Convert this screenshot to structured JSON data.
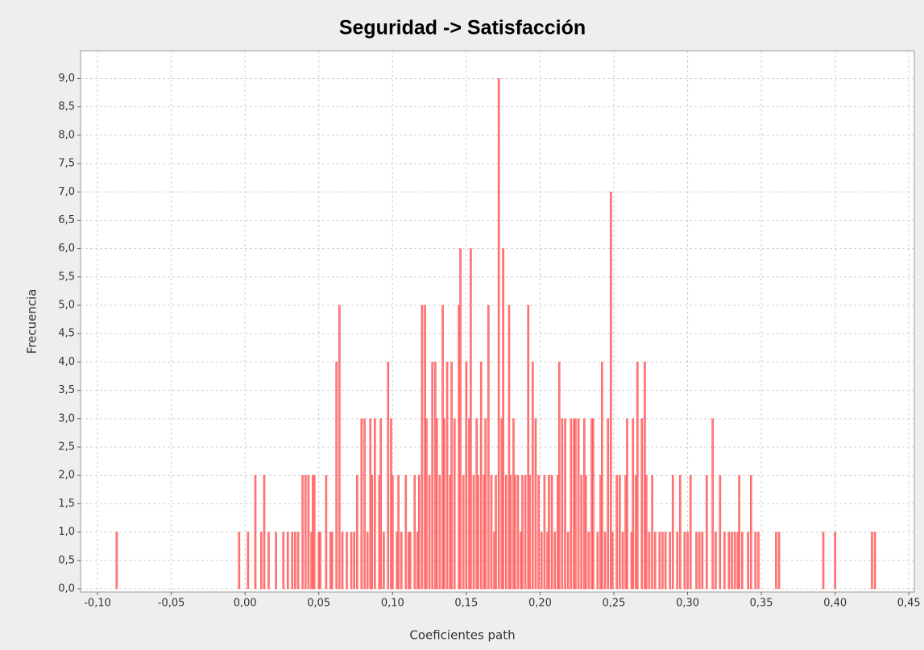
{
  "chart_data": {
    "type": "bar",
    "title": "Seguridad -> Satisfacción",
    "xlabel": "Coeficientes path",
    "ylabel": "Frecuencia",
    "color": "#ff5555",
    "x": [
      -0.087,
      -0.004,
      0.002,
      0.007,
      0.011,
      0.013,
      0.016,
      0.021,
      0.026,
      0.029,
      0.032,
      0.034,
      0.036,
      0.039,
      0.041,
      0.043,
      0.045,
      0.046,
      0.047,
      0.05,
      0.051,
      0.055,
      0.058,
      0.059,
      0.062,
      0.064,
      0.066,
      0.069,
      0.072,
      0.074,
      0.076,
      0.079,
      0.081,
      0.083,
      0.085,
      0.086,
      0.088,
      0.091,
      0.092,
      0.094,
      0.097,
      0.099,
      0.1,
      0.103,
      0.104,
      0.106,
      0.109,
      0.111,
      0.112,
      0.115,
      0.117,
      0.118,
      0.12,
      0.122,
      0.123,
      0.125,
      0.127,
      0.129,
      0.13,
      0.132,
      0.134,
      0.135,
      0.137,
      0.139,
      0.14,
      0.142,
      0.145,
      0.146,
      0.148,
      0.15,
      0.152,
      0.153,
      0.155,
      0.157,
      0.158,
      0.16,
      0.162,
      0.163,
      0.165,
      0.167,
      0.169,
      0.17,
      0.172,
      0.174,
      0.175,
      0.177,
      0.179,
      0.18,
      0.182,
      0.183,
      0.185,
      0.187,
      0.188,
      0.19,
      0.192,
      0.193,
      0.195,
      0.197,
      0.199,
      0.201,
      0.203,
      0.205,
      0.206,
      0.208,
      0.21,
      0.212,
      0.213,
      0.215,
      0.217,
      0.219,
      0.221,
      0.223,
      0.224,
      0.226,
      0.228,
      0.23,
      0.231,
      0.233,
      0.235,
      0.236,
      0.239,
      0.241,
      0.242,
      0.244,
      0.246,
      0.248,
      0.249,
      0.252,
      0.254,
      0.256,
      0.258,
      0.259,
      0.262,
      0.263,
      0.265,
      0.266,
      0.269,
      0.271,
      0.272,
      0.274,
      0.276,
      0.278,
      0.281,
      0.283,
      0.285,
      0.288,
      0.29,
      0.293,
      0.295,
      0.298,
      0.3,
      0.302,
      0.306,
      0.308,
      0.31,
      0.313,
      0.317,
      0.319,
      0.322,
      0.325,
      0.328,
      0.33,
      0.332,
      0.334,
      0.335,
      0.337,
      0.341,
      0.343,
      0.346,
      0.348,
      0.36,
      0.362,
      0.392,
      0.4,
      0.425,
      0.427
    ],
    "values": [
      1,
      1,
      1,
      2,
      1,
      2,
      1,
      1,
      1,
      1,
      1,
      1,
      1,
      2,
      2,
      2,
      1,
      2,
      2,
      1,
      1,
      2,
      1,
      1,
      4,
      5,
      1,
      1,
      1,
      1,
      2,
      3,
      3,
      1,
      3,
      2,
      3,
      2,
      3,
      1,
      4,
      3,
      2,
      1,
      2,
      1,
      2,
      1,
      1,
      2,
      1,
      2,
      5,
      5,
      3,
      2,
      4,
      4,
      3,
      2,
      5,
      3,
      4,
      2,
      4,
      3,
      5,
      6,
      2,
      4,
      3,
      6,
      2,
      3,
      2,
      4,
      2,
      3,
      5,
      2,
      1,
      2,
      9,
      3,
      6,
      2,
      5,
      2,
      3,
      2,
      2,
      1,
      2,
      2,
      5,
      2,
      4,
      3,
      2,
      1,
      2,
      1,
      2,
      2,
      1,
      2,
      4,
      3,
      3,
      1,
      3,
      3,
      3,
      3,
      2,
      3,
      2,
      1,
      3,
      3,
      1,
      2,
      4,
      1,
      3,
      7,
      1,
      2,
      2,
      1,
      2,
      3,
      1,
      3,
      2,
      4,
      3,
      4,
      2,
      1,
      2,
      1,
      1,
      1,
      1,
      1,
      2,
      1,
      2,
      1,
      1,
      2,
      1,
      1,
      1,
      2,
      3,
      1,
      2,
      1,
      1,
      1,
      1,
      1,
      2,
      1,
      1,
      2,
      1,
      1,
      1,
      1,
      1,
      1,
      1,
      1
    ],
    "xlim": [
      -0.1115,
      0.4537
    ],
    "ylim": [
      -0.057,
      9.49
    ],
    "xticks": [
      {
        "value": -0.1,
        "label": "-0,10"
      },
      {
        "value": -0.05,
        "label": "-0,05"
      },
      {
        "value": 0,
        "label": "0,00"
      },
      {
        "value": 0.05,
        "label": "0,05"
      },
      {
        "value": 0.1,
        "label": "0,10"
      },
      {
        "value": 0.15,
        "label": "0,15"
      },
      {
        "value": 0.2,
        "label": "0,20"
      },
      {
        "value": 0.25,
        "label": "0,25"
      },
      {
        "value": 0.3,
        "label": "0,30"
      },
      {
        "value": 0.35,
        "label": "0,35"
      },
      {
        "value": 0.4,
        "label": "0,40"
      },
      {
        "value": 0.45,
        "label": "0,45"
      }
    ],
    "yticks": [
      {
        "value": 0,
        "label": "0,0"
      },
      {
        "value": 0.5,
        "label": "0,5"
      },
      {
        "value": 1,
        "label": "1,0"
      },
      {
        "value": 1.5,
        "label": "1,5"
      },
      {
        "value": 2,
        "label": "2,0"
      },
      {
        "value": 2.5,
        "label": "2,5"
      },
      {
        "value": 3,
        "label": "3,0"
      },
      {
        "value": 3.5,
        "label": "3,5"
      },
      {
        "value": 4,
        "label": "4,0"
      },
      {
        "value": 4.5,
        "label": "4,5"
      },
      {
        "value": 5,
        "label": "5,0"
      },
      {
        "value": 5.5,
        "label": "5,5"
      },
      {
        "value": 6,
        "label": "6,0"
      },
      {
        "value": 6.5,
        "label": "6,5"
      },
      {
        "value": 7,
        "label": "7,0"
      },
      {
        "value": 7.5,
        "label": "7,5"
      },
      {
        "value": 8,
        "label": "8,0"
      },
      {
        "value": 8.5,
        "label": "8,5"
      },
      {
        "value": 9,
        "label": "9,0"
      }
    ],
    "grid": true
  }
}
